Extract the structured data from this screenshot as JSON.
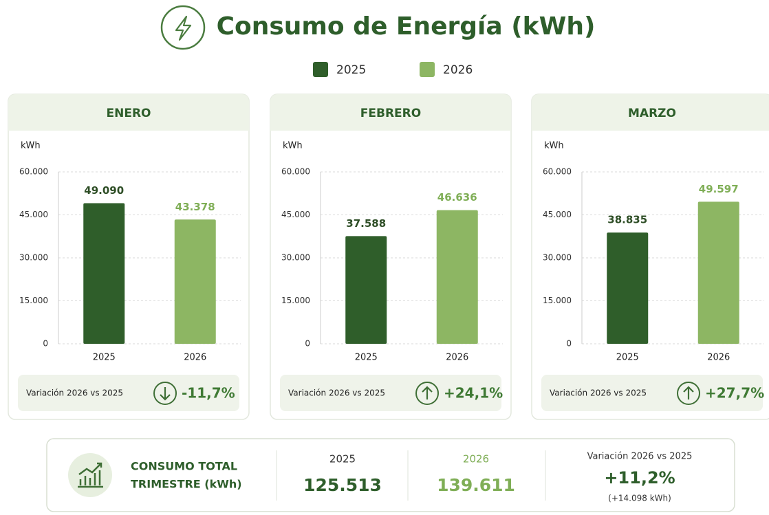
{
  "title": "Consumo de Energía (kWh)",
  "legend": [
    {
      "name": "2025",
      "color": "#2f5e2a"
    },
    {
      "name": "2026",
      "color": "#8db663"
    }
  ],
  "chart_data": [
    {
      "type": "bar",
      "title": "ENERO",
      "y_label": "kWh",
      "categories": [
        "2025",
        "2026"
      ],
      "values": [
        49090,
        43378
      ],
      "value_labels": [
        "49.090",
        "43.378"
      ],
      "colors": [
        "#2f5e2a",
        "#8db663"
      ],
      "ylim": [
        0,
        60000
      ],
      "yticks": [
        0,
        {
          "value": 15000,
          "label": "15.000"
        },
        {
          "value": 30000,
          "label": "30.000"
        },
        {
          "value": 45000,
          "label": "45.000"
        },
        {
          "value": 60000,
          "label": "60.000"
        }
      ],
      "grid": true,
      "annotation": {
        "label": "Variación 2026 vs 2025",
        "value": "-11,7%"
      }
    },
    {
      "type": "bar",
      "title": "FEBRERO",
      "y_label": "kWh",
      "categories": [
        "2025",
        "2026"
      ],
      "values": [
        37588,
        46636
      ],
      "value_labels": [
        "37.588",
        "46.636"
      ],
      "colors": [
        "#2f5e2a",
        "#8db663"
      ],
      "ylim": [
        0,
        60000
      ],
      "yticks": [
        0,
        {
          "value": 15000,
          "label": "15.000"
        },
        {
          "value": 30000,
          "label": "30.000"
        },
        {
          "value": 45000,
          "label": "45.000"
        },
        {
          "value": 60000,
          "label": "60.000"
        }
      ],
      "grid": true,
      "annotation": {
        "label": "Variación 2026 vs 2025",
        "value": "+24,1%"
      }
    },
    {
      "type": "bar",
      "title": "MARZO",
      "y_label": "kWh",
      "categories": [
        "2025",
        "2026"
      ],
      "values": [
        38835,
        49597
      ],
      "value_labels": [
        "38.835",
        "49.597"
      ],
      "colors": [
        "#2f5e2a",
        "#8db663"
      ],
      "ylim": [
        0,
        60000
      ],
      "yticks": [
        0,
        {
          "value": 15000,
          "label": "15.000"
        },
        {
          "value": 30000,
          "label": "30.000"
        },
        {
          "value": 45000,
          "label": "45.000"
        },
        {
          "value": 60000,
          "label": "60.000"
        }
      ],
      "grid": true,
      "annotation": {
        "label": "Variación 2026 vs 2025",
        "value": "+27,7%"
      }
    }
  ],
  "summary": {
    "title_lines": [
      "CONSUMO TOTAL",
      "TRIMESTRE (kWh)"
    ],
    "columns": [
      {
        "label": "2025",
        "value": "125.513"
      },
      {
        "label": "2026",
        "value": "139.611"
      }
    ],
    "variation": {
      "label": "Variación 2026 vs 2025",
      "value": "+11,2%",
      "detail": "(+14.098 kWh)"
    }
  }
}
